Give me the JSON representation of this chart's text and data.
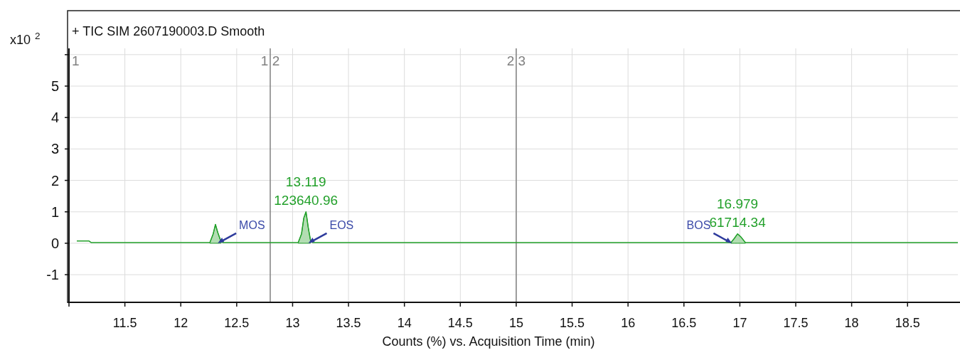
{
  "chart_data": {
    "type": "line",
    "title": "+ TIC SIM 2607190003.D  Smooth",
    "xlabel": "Counts (%) vs. Acquisition Time (min)",
    "ylabel": "x10$^{2}$",
    "xlim": [
      11,
      18.95
    ],
    "ylim": [
      -1.88,
      6.2
    ],
    "xticks": [
      {
        "value": 11,
        "label": null
      },
      11.5,
      12,
      12.5,
      13,
      13.5,
      14,
      14.5,
      15,
      15.5,
      16,
      16.5,
      17,
      17.5,
      18,
      18.5
    ],
    "yticks": [
      -1,
      0,
      1,
      2,
      3,
      4,
      5,
      {
        "value": 6,
        "label": null
      }
    ],
    "grid": true,
    "series": [
      {
        "color": "#22a02a",
        "x": [
          11.07,
          11.18,
          11.2,
          12.26,
          12.29,
          12.31,
          12.33,
          12.36,
          12.38,
          13.05,
          13.08,
          13.1,
          13.12,
          13.14,
          13.16,
          13.18,
          16.92,
          16.95,
          16.98,
          17.01,
          17.05,
          18.95
        ],
        "values": [
          0.07,
          0.07,
          0.02,
          0.02,
          0.3,
          0.6,
          0.35,
          0.05,
          0.02,
          0.02,
          0.3,
          0.8,
          1.0,
          0.5,
          0.1,
          0.02,
          0.02,
          0.15,
          0.3,
          0.2,
          0.02,
          0.02
        ]
      },
      {
        "type": "area",
        "color": "#9fd49f",
        "x": [
          12.26,
          12.29,
          12.31,
          12.33,
          12.36
        ],
        "values": [
          0.02,
          0.3,
          0.6,
          0.35,
          0.05
        ]
      },
      {
        "type": "area",
        "color": "#9fd49f",
        "x": [
          13.05,
          13.08,
          13.1,
          13.12,
          13.14,
          13.16
        ],
        "values": [
          0.02,
          0.3,
          0.8,
          1.0,
          0.5,
          0.1
        ]
      },
      {
        "type": "area",
        "color": "#9fd49f",
        "x": [
          16.92,
          16.95,
          16.98,
          17.01,
          17.05
        ],
        "values": [
          0.02,
          0.15,
          0.3,
          0.2,
          0.02
        ]
      }
    ],
    "ref_lines": [
      {
        "axis": "x",
        "value": 12.8,
        "color": "#808080"
      },
      {
        "axis": "x",
        "value": 15,
        "color": "#808080"
      }
    ],
    "annotations": [
      "1",
      {
        "text": "1 2",
        "x": 12.8
      },
      {
        "text": "2 3",
        "x": 15
      },
      {
        "text": "13.119\n123640.96",
        "x": 13.119,
        "y": 1.0
      },
      {
        "text": "16.979\n61714.34",
        "x": 16.979,
        "y": 0.3
      },
      {
        "text": "MOS",
        "x": 12.33,
        "y": 0
      },
      {
        "text": "EOS",
        "x": 13.14,
        "y": 0
      },
      {
        "text": "BOS",
        "x": 16.93,
        "y": 0
      }
    ]
  }
}
